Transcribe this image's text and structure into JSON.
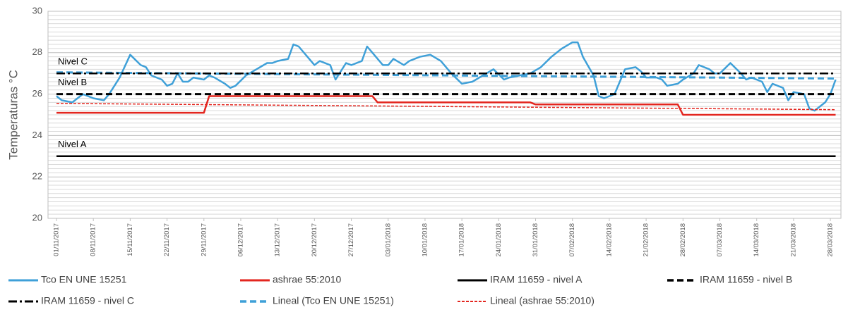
{
  "chart_data": {
    "type": "line",
    "ylabel": "Temperaturas °C",
    "xlim": [
      "01/11/2017",
      "30/03/2018"
    ],
    "xticks": [
      "01/11/2017",
      "08/11/2017",
      "15/11/2017",
      "22/11/2017",
      "29/11/2017",
      "06/12/2017",
      "13/12/2017",
      "20/12/2017",
      "27/12/2017",
      "03/01/2018",
      "10/01/2018",
      "17/01/2018",
      "24/01/2018",
      "31/01/2018",
      "07/02/2018",
      "14/02/2018",
      "21/02/2018",
      "28/02/2018",
      "07/03/2018",
      "14/03/2018",
      "21/03/2018",
      "28/03/2018"
    ],
    "ylim": [
      20,
      30
    ],
    "yticks": [
      20,
      22,
      24,
      26,
      28,
      30
    ],
    "yminorticks": [
      20.2,
      20.4,
      20.6,
      20.8,
      21,
      21.2,
      21.4,
      21.6,
      21.8,
      22.2,
      22.4,
      22.6,
      22.8,
      23,
      23.2,
      23.4,
      23.6,
      23.8,
      24.2,
      24.4,
      24.6,
      24.8,
      25,
      25.2,
      25.4,
      25.6,
      25.8,
      26.2,
      26.4,
      26.6,
      26.8,
      27,
      27.2,
      27.4,
      27.6,
      27.8,
      28.2,
      28.4,
      28.6,
      28.8,
      29,
      29.2,
      29.4,
      29.6,
      29.8
    ],
    "grid": true,
    "legend": "bottom",
    "annotations": [
      {
        "text": "Nivel C",
        "y": 27
      },
      {
        "text": "Nivel B",
        "y": 26
      },
      {
        "text": "Nivel A",
        "y": 23
      }
    ],
    "series": [
      {
        "name": "Tco EN UNE 15251",
        "color": "#3fa0d8",
        "dash": "solid",
        "x": [
          "01/11/2017",
          "02/11/2017",
          "04/11/2017",
          "06/11/2017",
          "08/11/2017",
          "10/11/2017",
          "11/11/2017",
          "13/11/2017",
          "15/11/2017",
          "17/11/2017",
          "18/11/2017",
          "19/11/2017",
          "21/11/2017",
          "22/11/2017",
          "23/11/2017",
          "24/11/2017",
          "25/11/2017",
          "26/11/2017",
          "27/11/2017",
          "29/11/2017",
          "30/11/2017",
          "01/12/2017",
          "03/12/2017",
          "04/12/2017",
          "05/12/2017",
          "07/12/2017",
          "09/12/2017",
          "11/12/2017",
          "12/12/2017",
          "13/12/2017",
          "15/12/2017",
          "16/12/2017",
          "17/12/2017",
          "19/12/2017",
          "20/12/2017",
          "21/12/2017",
          "23/12/2017",
          "24/12/2017",
          "26/12/2017",
          "27/12/2017",
          "29/12/2017",
          "30/12/2017",
          "31/12/2017",
          "02/01/2018",
          "03/01/2018",
          "04/01/2018",
          "06/01/2018",
          "07/01/2018",
          "09/01/2018",
          "11/01/2018",
          "13/01/2018",
          "15/01/2018",
          "17/01/2018",
          "19/01/2018",
          "21/01/2018",
          "23/01/2018",
          "25/01/2018",
          "26/01/2018",
          "28/01/2018",
          "30/01/2018",
          "01/02/2018",
          "03/02/2018",
          "05/02/2018",
          "07/02/2018",
          "08/02/2018",
          "09/02/2018",
          "11/02/2018",
          "12/02/2018",
          "13/02/2018",
          "15/02/2018",
          "16/02/2018",
          "17/02/2018",
          "19/02/2018",
          "20/02/2018",
          "21/02/2018",
          "23/02/2018",
          "24/02/2018",
          "25/02/2018",
          "27/02/2018",
          "28/02/2018",
          "02/03/2018",
          "03/03/2018",
          "05/03/2018",
          "06/03/2018",
          "07/03/2018",
          "09/03/2018",
          "11/03/2018",
          "12/03/2018",
          "13/03/2018",
          "15/03/2018",
          "16/03/2018",
          "17/03/2018",
          "19/03/2018",
          "20/03/2018",
          "21/03/2018",
          "23/03/2018",
          "24/03/2018",
          "25/03/2018",
          "27/03/2018",
          "28/03/2018",
          "29/03/2018"
        ],
        "values": [
          25.9,
          25.7,
          25.6,
          26.0,
          25.8,
          25.7,
          26.0,
          26.8,
          27.9,
          27.4,
          27.3,
          26.9,
          26.7,
          26.4,
          26.5,
          27.0,
          26.6,
          26.6,
          26.8,
          26.7,
          26.9,
          26.8,
          26.5,
          26.3,
          26.4,
          26.9,
          27.2,
          27.5,
          27.5,
          27.6,
          27.7,
          28.4,
          28.3,
          27.7,
          27.4,
          27.6,
          27.4,
          26.7,
          27.5,
          27.4,
          27.6,
          28.3,
          28.0,
          27.4,
          27.4,
          27.7,
          27.4,
          27.6,
          27.8,
          27.9,
          27.6,
          27.0,
          26.5,
          26.6,
          26.9,
          27.2,
          26.7,
          26.8,
          26.9,
          27.0,
          27.3,
          27.8,
          28.2,
          28.5,
          28.5,
          27.8,
          26.9,
          25.9,
          25.8,
          26.0,
          26.6,
          27.2,
          27.3,
          27.1,
          26.8,
          26.8,
          26.7,
          26.4,
          26.5,
          26.7,
          27.0,
          27.4,
          27.2,
          27.0,
          27.0,
          27.5,
          27.0,
          26.7,
          26.8,
          26.6,
          26.1,
          26.5,
          26.3,
          25.7,
          26.1,
          26.0,
          25.3,
          25.2,
          25.6,
          26.0,
          26.7
        ]
      },
      {
        "name": "ashrae 55:2010",
        "color": "#e3261f",
        "dash": "solid",
        "x": [
          "01/11/2017",
          "29/11/2017",
          "30/11/2017",
          "31/12/2017",
          "01/01/2018",
          "30/01/2018",
          "31/01/2018",
          "27/02/2018",
          "28/02/2018",
          "29/03/2018"
        ],
        "values": [
          25.1,
          25.1,
          25.9,
          25.9,
          25.6,
          25.6,
          25.5,
          25.5,
          25.0,
          25.0
        ]
      },
      {
        "name": "IRAM 11659 - nivel A",
        "color": "#000000",
        "dash": "solid",
        "x": [
          "01/11/2017",
          "29/03/2018"
        ],
        "values": [
          23,
          23
        ]
      },
      {
        "name": "IRAM 11659 - nivel B",
        "color": "#000000",
        "dash": "dash",
        "x": [
          "01/11/2017",
          "29/03/2018"
        ],
        "values": [
          26,
          26
        ]
      },
      {
        "name": "IRAM 11659 - nivel C",
        "color": "#000000",
        "dash": "dashdot",
        "x": [
          "01/11/2017",
          "29/03/2018"
        ],
        "values": [
          27,
          27
        ]
      },
      {
        "name": "Lineal (Tco EN UNE 15251)",
        "color": "#3fa0d8",
        "dash": "dash",
        "x": [
          "01/11/2017",
          "29/03/2018"
        ],
        "values": [
          27.05,
          26.75
        ]
      },
      {
        "name": "Lineal (ashrae 55:2010)",
        "color": "#e3261f",
        "dash": "shortdash",
        "x": [
          "01/11/2017",
          "29/03/2018"
        ],
        "values": [
          25.55,
          25.25
        ]
      }
    ]
  }
}
